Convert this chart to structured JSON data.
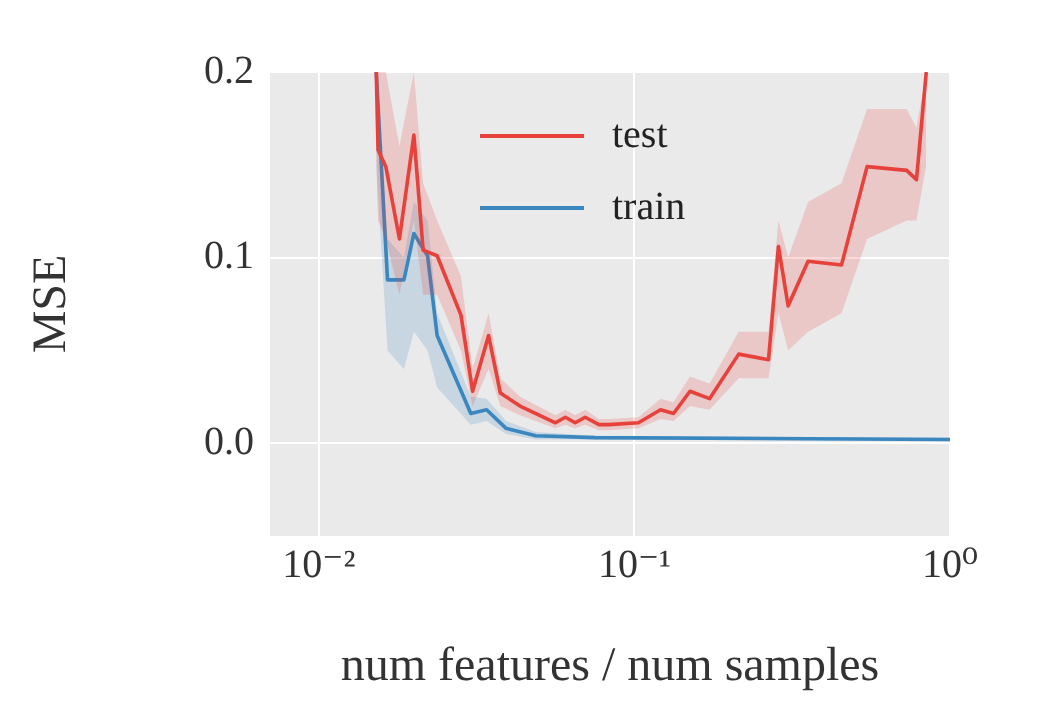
{
  "chart_data": {
    "type": "line",
    "xlabel": "num features / num samples",
    "ylabel": "MSE",
    "log": "x",
    "grid": true,
    "legend": "top",
    "marker": "none",
    "line_style": "solid",
    "xlim": [
      0.007,
      1
    ],
    "xticks": [
      {
        "value": 0.01,
        "label": "10⁻²"
      },
      {
        "value": 0.1,
        "label": "10⁻¹"
      },
      {
        "value": 1,
        "label": "10⁰"
      }
    ],
    "ylim": [
      -0.05,
      0.2
    ],
    "yticks": [
      {
        "value": 0,
        "label": "0.0"
      },
      {
        "value": 0.1,
        "label": "0.1"
      },
      {
        "value": 0.2,
        "label": "0.2"
      }
    ],
    "series": [
      {
        "name": "test",
        "color": "#e8413c",
        "x": [
          0.0152,
          0.0154,
          0.0163,
          0.018,
          0.02,
          0.0214,
          0.0237,
          0.0282,
          0.0307,
          0.0345,
          0.0376,
          0.0434,
          0.0562,
          0.0604,
          0.0649,
          0.0698,
          0.0772,
          0.083,
          0.103,
          0.121,
          0.133,
          0.15,
          0.173,
          0.214,
          0.266,
          0.286,
          0.307,
          0.355,
          0.453,
          0.546,
          0.729,
          0.783,
          0.841
        ],
        "values": [
          0.2,
          0.158,
          0.149,
          0.11,
          0.166,
          0.104,
          0.101,
          0.069,
          0.028,
          0.058,
          0.027,
          0.02,
          0.011,
          0.014,
          0.011,
          0.014,
          0.01,
          0.01,
          0.011,
          0.018,
          0.016,
          0.028,
          0.024,
          0.048,
          0.045,
          0.106,
          0.074,
          0.098,
          0.096,
          0.149,
          0.147,
          0.142,
          0.2
        ],
        "lower": [
          0.15,
          0.12,
          0.11,
          0.08,
          0.12,
          0.08,
          0.08,
          0.05,
          0.02,
          0.04,
          0.02,
          0.015,
          0.008,
          0.01,
          0.008,
          0.01,
          0.007,
          0.007,
          0.008,
          0.013,
          0.012,
          0.02,
          0.018,
          0.035,
          0.035,
          0.07,
          0.05,
          0.06,
          0.07,
          0.11,
          0.12,
          0.12,
          0.15
        ],
        "upper": [
          0.2,
          0.2,
          0.2,
          0.16,
          0.2,
          0.14,
          0.12,
          0.09,
          0.04,
          0.07,
          0.035,
          0.025,
          0.015,
          0.018,
          0.015,
          0.018,
          0.013,
          0.013,
          0.014,
          0.024,
          0.022,
          0.036,
          0.032,
          0.06,
          0.06,
          0.12,
          0.1,
          0.13,
          0.14,
          0.18,
          0.18,
          0.17,
          0.2
        ]
      },
      {
        "name": "train",
        "color": "#3a86c0",
        "x": [
          0.0152,
          0.0165,
          0.0186,
          0.02,
          0.0221,
          0.0237,
          0.0303,
          0.034,
          0.0392,
          0.0487,
          0.075,
          1
        ],
        "values": [
          0.2,
          0.088,
          0.088,
          0.113,
          0.101,
          0.058,
          0.016,
          0.018,
          0.008,
          0.004,
          0.003,
          0.002
        ],
        "lower": [
          0.15,
          0.05,
          0.04,
          0.06,
          0.05,
          0.03,
          0.01,
          0.012,
          0.005,
          0.002,
          0.002,
          0.001
        ],
        "upper": [
          0.2,
          0.11,
          0.1,
          0.13,
          0.12,
          0.07,
          0.025,
          0.024,
          0.012,
          0.006,
          0.004,
          0.003
        ]
      }
    ]
  }
}
